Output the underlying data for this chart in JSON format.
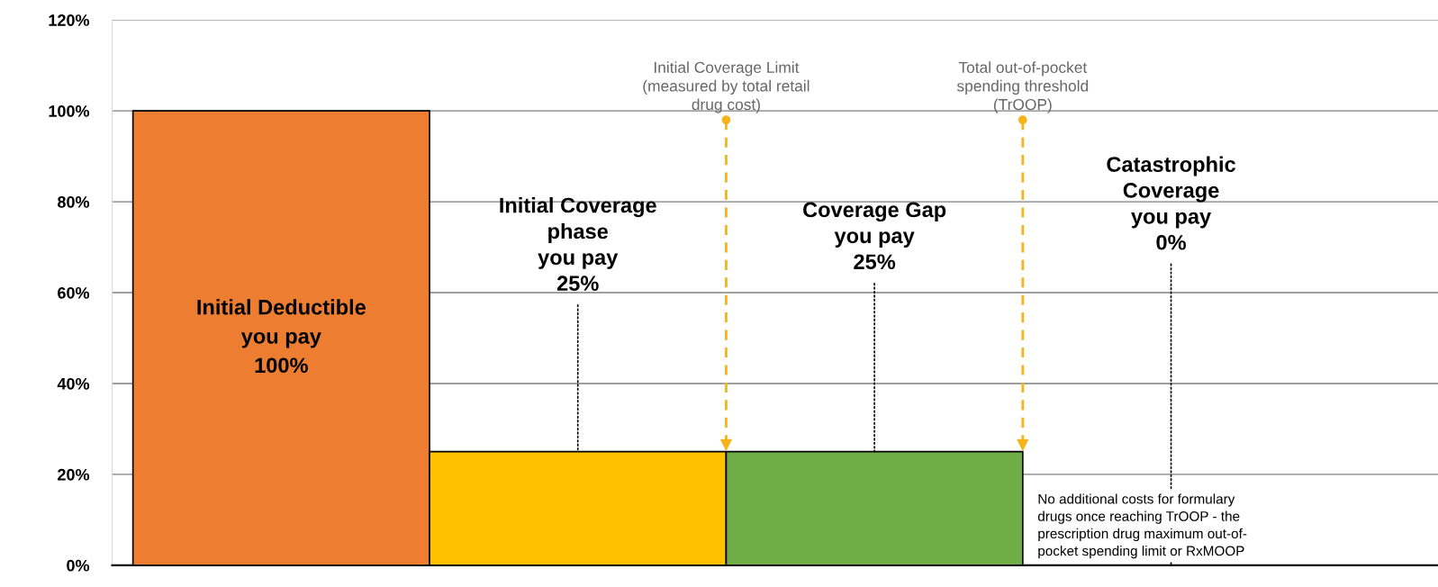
{
  "chart_data": {
    "type": "bar",
    "categories": [
      null,
      null,
      null,
      null
    ],
    "values": [
      100,
      25,
      25,
      0
    ],
    "colors": [
      "#ed7d31",
      "#ffc000",
      "#70ad47",
      "#000000"
    ],
    "ylim": [
      0,
      120
    ],
    "yticks": [
      {
        "value": 0,
        "label": "0%"
      },
      {
        "value": 20,
        "label": "20%"
      },
      {
        "value": 40,
        "label": "40%"
      },
      {
        "value": 60,
        "label": "60%"
      },
      {
        "value": 80,
        "label": "80%"
      },
      {
        "value": 100,
        "label": "100%"
      },
      {
        "value": 120,
        "label": "120%"
      }
    ],
    "grid": "y",
    "tick_labels": "y",
    "annotations": [
      "Initial Coverage Limit\n(measured by total retail\ndrug cost)",
      "Total out-of-pocket\nspending threshold\n(TrOOP)",
      "Initial Deductible\nyou pay\n100%",
      "Initial Coverage\nphase\nyou pay\n25%",
      "Coverage Gap\nyou pay\n25%",
      "Catastrophic\nCoverage\nyou pay\n0%",
      "No additional costs for formulary\ndrugs once reaching TrOOP - the\nprescription drug maximum out-of-\npocket spending limit or RxMOOP"
    ]
  }
}
